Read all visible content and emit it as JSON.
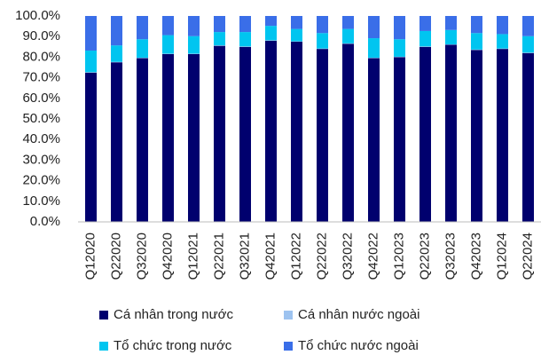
{
  "chart_data": {
    "type": "stacked_bar",
    "categories": [
      "Q12020",
      "Q22020",
      "Q32020",
      "Q42020",
      "Q12021",
      "Q22021",
      "Q32021",
      "Q42021",
      "Q12022",
      "Q22022",
      "Q32022",
      "Q42022",
      "Q12023",
      "Q22023",
      "Q32023",
      "Q42023",
      "Q12024",
      "Q22024"
    ],
    "series": [
      {
        "name": "Cá nhân trong nước",
        "color": "#00006e",
        "values": [
          72.5,
          77.5,
          79.5,
          81.5,
          81.5,
          85.5,
          85,
          88,
          87.5,
          84,
          86.5,
          79.5,
          80,
          85,
          86,
          83.5,
          84,
          82
        ]
      },
      {
        "name": "Cá nhân nước ngoài",
        "color": "#9dc3f0",
        "values": [
          0.2,
          0.2,
          0.2,
          0.2,
          0.2,
          0.2,
          0.2,
          0.2,
          0.2,
          0.2,
          0.2,
          0.2,
          0.2,
          0.2,
          0.2,
          0.2,
          0.2,
          0.2
        ]
      },
      {
        "name": "Tổ chức trong nước",
        "color": "#00c5f0",
        "values": [
          10.5,
          8,
          9,
          9,
          8.5,
          6.5,
          7,
          7,
          6,
          7.5,
          7,
          9.5,
          8.5,
          7.5,
          7,
          8,
          7,
          8
        ]
      },
      {
        "name": "Tổ chức nước ngoài",
        "color": "#3a6ee8",
        "values": [
          16.8,
          14.3,
          11.3,
          9.3,
          9.8,
          7.8,
          7.8,
          4.8,
          6.3,
          8.3,
          6.3,
          10.8,
          11.3,
          7.3,
          6.8,
          8.3,
          8.8,
          9.8
        ]
      }
    ],
    "ylim": [
      0,
      100
    ],
    "yticks": [
      {
        "value": 0,
        "label": "0.0%"
      },
      {
        "value": 10,
        "label": "10.0%"
      },
      {
        "value": 20,
        "label": "20.0%"
      },
      {
        "value": 30,
        "label": "30.0%"
      },
      {
        "value": 40,
        "label": "40.0%"
      },
      {
        "value": 50,
        "label": "50.0%"
      },
      {
        "value": 60,
        "label": "60.0%"
      },
      {
        "value": 70,
        "label": "70.0%"
      },
      {
        "value": 80,
        "label": "80.0%"
      },
      {
        "value": 90,
        "label": "90.0%"
      },
      {
        "value": 100,
        "label": "100.0%"
      }
    ],
    "grid": false,
    "legend": "bottom"
  }
}
